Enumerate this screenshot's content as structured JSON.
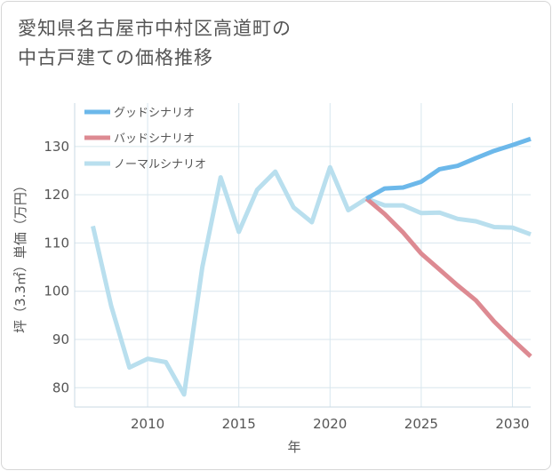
{
  "title": {
    "line1": "愛知県名古屋市中村区高道町の",
    "line2": "中古戸建ての価格推移"
  },
  "chart_data": {
    "type": "line",
    "xlabel": "年",
    "ylabel": "坪（3.3㎡）単価（万円）",
    "xlim": [
      2006,
      2031
    ],
    "ylim": [
      76,
      139
    ],
    "xticks": [
      2010,
      2015,
      2020,
      2025,
      2030
    ],
    "yticks": [
      80,
      90,
      100,
      110,
      120,
      130
    ],
    "grid": true,
    "legend_position": "top-left",
    "series": [
      {
        "name": "グッドシナリオ",
        "color": "#6cb8ea",
        "points": [
          [
            2022,
            119.2
          ],
          [
            2023,
            121.3
          ],
          [
            2024,
            121.5
          ],
          [
            2025,
            122.7
          ],
          [
            2026,
            125.3
          ],
          [
            2027,
            126.0
          ],
          [
            2028,
            127.6
          ],
          [
            2029,
            129.1
          ],
          [
            2030,
            130.3
          ],
          [
            2031,
            131.6
          ]
        ]
      },
      {
        "name": "バッドシナリオ",
        "color": "#dd8a92",
        "points": [
          [
            2022,
            119.2
          ],
          [
            2023,
            116.0
          ],
          [
            2024,
            112.2
          ],
          [
            2025,
            107.8
          ],
          [
            2026,
            104.5
          ],
          [
            2027,
            101.2
          ],
          [
            2028,
            98.1
          ],
          [
            2029,
            93.7
          ],
          [
            2030,
            90.0
          ],
          [
            2031,
            86.5
          ]
        ]
      },
      {
        "name": "ノーマルシナリオ",
        "color": "#b9dfee",
        "points": [
          [
            2007,
            113.5
          ],
          [
            2008,
            97.0
          ],
          [
            2009,
            84.2
          ],
          [
            2010,
            86.0
          ],
          [
            2011,
            85.3
          ],
          [
            2012,
            78.6
          ],
          [
            2013,
            105.0
          ],
          [
            2014,
            123.6
          ],
          [
            2015,
            112.3
          ],
          [
            2016,
            121.0
          ],
          [
            2017,
            124.8
          ],
          [
            2018,
            117.4
          ],
          [
            2019,
            114.3
          ],
          [
            2020,
            125.7
          ],
          [
            2021,
            116.8
          ],
          [
            2022,
            119.2
          ],
          [
            2023,
            117.8
          ],
          [
            2024,
            117.8
          ],
          [
            2025,
            116.2
          ],
          [
            2026,
            116.3
          ],
          [
            2027,
            115.0
          ],
          [
            2028,
            114.5
          ],
          [
            2029,
            113.3
          ],
          [
            2030,
            113.2
          ],
          [
            2031,
            111.8
          ]
        ]
      }
    ]
  }
}
